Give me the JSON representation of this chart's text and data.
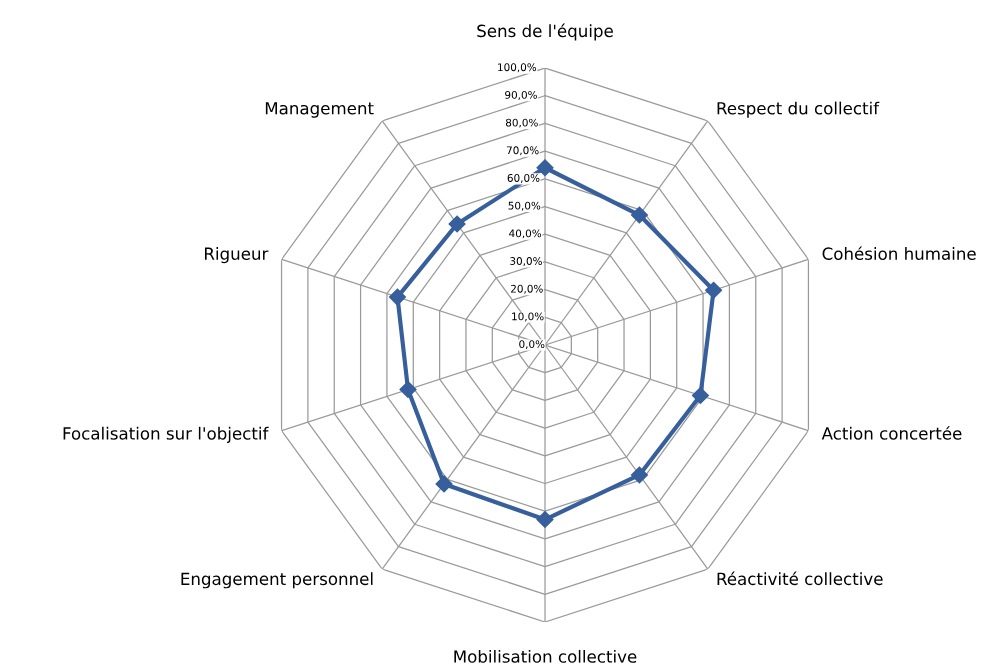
{
  "chart_data": {
    "type": "radar",
    "categories": [
      "Sens de l'équipe",
      "Respect du collectif",
      "Cohésion humaine",
      "Action concertée",
      "Réactivité collective",
      "Mobilisation collective",
      "Engagement personnel",
      "Focalisation sur l'objectif",
      "Rigueur",
      "Management"
    ],
    "series": [
      {
        "color": "#365f9c",
        "values": [
          0.64,
          0.58,
          0.64,
          0.59,
          0.58,
          0.63,
          0.62,
          0.52,
          0.56,
          0.54
        ]
      }
    ],
    "ylim": [
      0,
      1
    ],
    "yticks": [
      {
        "value": 0,
        "label": "0,0%"
      },
      {
        "value": 0.1,
        "label": "10,0%"
      },
      {
        "value": 0.2,
        "label": "20,0%"
      },
      {
        "value": 0.3,
        "label": "30,0%"
      },
      {
        "value": 0.4,
        "label": "40,0%"
      },
      {
        "value": 0.5,
        "label": "50,0%"
      },
      {
        "value": 0.6,
        "label": "60,0%"
      },
      {
        "value": 0.7,
        "label": "70,0%"
      },
      {
        "value": 0.8,
        "label": "80,0%"
      },
      {
        "value": 0.9,
        "label": "90,0%"
      },
      {
        "value": 1,
        "label": "100,0%"
      }
    ],
    "grid": true,
    "marker": "diamond",
    "line_style": "solid"
  }
}
